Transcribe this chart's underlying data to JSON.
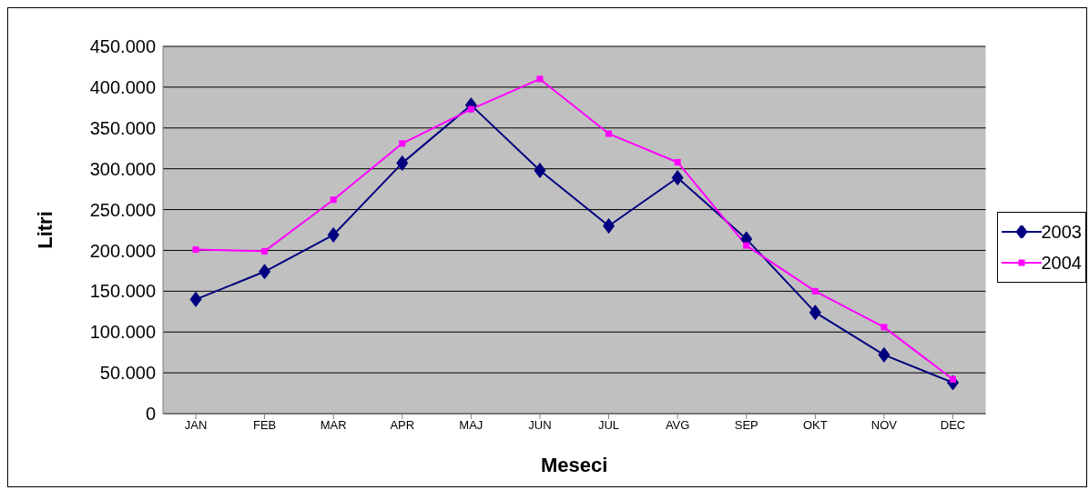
{
  "chart_data": {
    "type": "line",
    "xlabel": "Meseci",
    "ylabel": "Litri",
    "categories": [
      "JAN",
      "FEB",
      "MAR",
      "APR",
      "MAJ",
      "JUN",
      "JUL",
      "AVG",
      "SEP",
      "OKT",
      "NOV",
      "DEC"
    ],
    "series": [
      {
        "name": "2003",
        "color": "#000080",
        "marker": "diamond",
        "values": [
          140000,
          174000,
          219000,
          307000,
          378000,
          298000,
          230000,
          289000,
          214000,
          124000,
          72000,
          38000
        ]
      },
      {
        "name": "2004",
        "color": "#ff00ff",
        "marker": "square",
        "values": [
          201000,
          199000,
          262000,
          331000,
          373000,
          410000,
          343000,
          308000,
          206000,
          150000,
          106000,
          42000
        ]
      }
    ],
    "ylim": [
      0,
      450000
    ],
    "yticks": [
      {
        "value": 0,
        "label": "0"
      },
      {
        "value": 50000,
        "label": "50.000"
      },
      {
        "value": 100000,
        "label": "100.000"
      },
      {
        "value": 150000,
        "label": "150.000"
      },
      {
        "value": 200000,
        "label": "200.000"
      },
      {
        "value": 250000,
        "label": "250.000"
      },
      {
        "value": 300000,
        "label": "300.000"
      },
      {
        "value": 350000,
        "label": "350.000"
      },
      {
        "value": 400000,
        "label": "400.000"
      },
      {
        "value": 450000,
        "label": "450.000"
      }
    ],
    "grid": "y",
    "legend": "right",
    "line_style": "solid"
  }
}
